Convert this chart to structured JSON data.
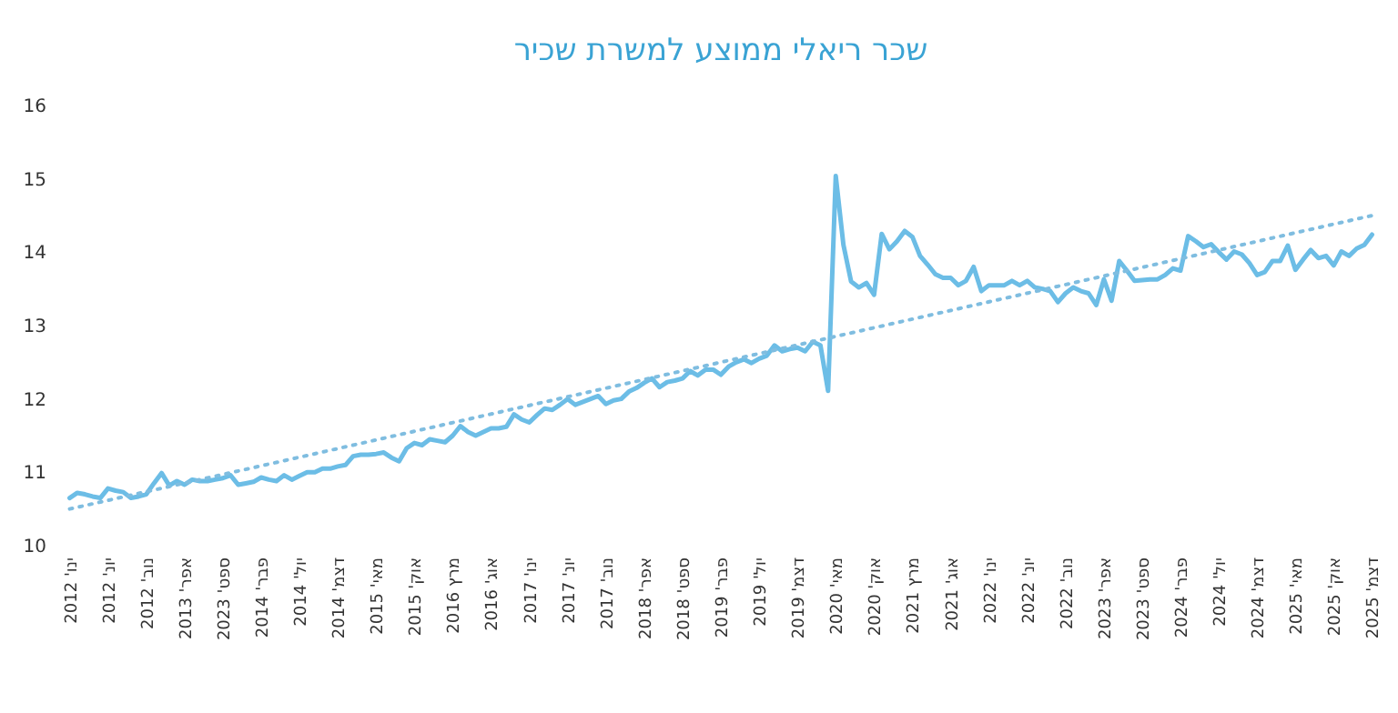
{
  "chart_data": {
    "type": "line",
    "title": "שכר ריאלי ממוצע למשרת שכיר",
    "categories": [
      "ינו' 2012",
      null,
      null,
      null,
      null,
      "יונ' 2012",
      null,
      null,
      null,
      null,
      "נוב' 2012",
      null,
      null,
      null,
      null,
      "אפר' 2013",
      null,
      null,
      null,
      null,
      "ספט' 2023",
      null,
      null,
      null,
      null,
      "פבר' 2014",
      null,
      null,
      null,
      null,
      "יול' 2014",
      null,
      null,
      null,
      null,
      "דצמ' 2014",
      null,
      null,
      null,
      null,
      "מאי' 2015",
      null,
      null,
      null,
      null,
      "אוק' 2015",
      null,
      null,
      null,
      null,
      "מרץ 2016",
      null,
      null,
      null,
      null,
      "אוג' 2016",
      null,
      null,
      null,
      null,
      "ינו' 2017",
      null,
      null,
      null,
      null,
      "יונ' 2017",
      null,
      null,
      null,
      null,
      "נוב' 2017",
      null,
      null,
      null,
      null,
      "אפר' 2018",
      null,
      null,
      null,
      null,
      "ספט' 2018",
      null,
      null,
      null,
      null,
      "פבר' 2019",
      null,
      null,
      null,
      null,
      "יול' 2019",
      null,
      null,
      null,
      null,
      "דצמ' 2019",
      null,
      null,
      null,
      null,
      "מאי' 2020",
      null,
      null,
      null,
      null,
      "אוק' 2020",
      null,
      null,
      null,
      null,
      "מרץ 2021",
      null,
      null,
      null,
      null,
      "אוג' 2021",
      null,
      null,
      null,
      null,
      "ינו' 2022",
      null,
      null,
      null,
      null,
      "יונ' 2022",
      null,
      null,
      null,
      null,
      "נוב' 2022",
      null,
      null,
      null,
      null,
      "אפר' 2023",
      null,
      null,
      null,
      null,
      "ספט' 2023",
      null,
      null,
      null,
      null,
      "פבר' 2024",
      null,
      null,
      null,
      null,
      "יול' 2024",
      null,
      null,
      null,
      null,
      "דצמ' 2024",
      null,
      null,
      null,
      null,
      "מאי' 2025",
      null,
      null,
      null,
      null,
      "אוק' 2025",
      null,
      null,
      null,
      null,
      "דצמ' 2025"
    ],
    "series": [
      {
        "color": "#6cbde6",
        "values": [
          10.65,
          10.72,
          10.7,
          10.67,
          10.65,
          10.78,
          10.75,
          10.73,
          10.65,
          10.67,
          10.7,
          10.85,
          10.99,
          10.82,
          10.88,
          10.83,
          10.9,
          10.88,
          10.88,
          10.9,
          10.92,
          10.96,
          10.83,
          10.85,
          10.87,
          10.93,
          10.9,
          10.88,
          10.96,
          10.9,
          10.95,
          11.0,
          11.0,
          11.05,
          11.05,
          11.08,
          11.1,
          11.22,
          11.24,
          11.24,
          11.25,
          11.27,
          11.2,
          11.15,
          11.33,
          11.4,
          11.37,
          11.45,
          11.43,
          11.41,
          11.5,
          11.63,
          11.55,
          11.5,
          11.55,
          11.6,
          11.6,
          11.62,
          11.79,
          11.72,
          11.68,
          11.78,
          11.87,
          11.85,
          11.92,
          12.0,
          11.92,
          11.96,
          12.0,
          12.04,
          11.93,
          11.98,
          12.0,
          12.1,
          12.15,
          12.22,
          12.28,
          12.16,
          12.23,
          12.25,
          12.28,
          12.38,
          12.32,
          12.4,
          12.4,
          12.33,
          12.44,
          12.5,
          12.54,
          12.49,
          12.55,
          12.59,
          12.73,
          12.65,
          12.68,
          12.7,
          12.65,
          12.78,
          12.73,
          12.11,
          15.04,
          14.1,
          13.6,
          13.52,
          13.58,
          13.42,
          14.25,
          14.04,
          14.15,
          14.29,
          14.21,
          13.95,
          13.83,
          13.7,
          13.65,
          13.65,
          13.55,
          13.61,
          13.8,
          13.47,
          13.55,
          13.55,
          13.55,
          13.61,
          13.55,
          13.61,
          13.52,
          13.5,
          13.47,
          13.32,
          13.44,
          13.52,
          13.47,
          13.44,
          13.28,
          13.63,
          13.34,
          13.88,
          13.75,
          13.61,
          13.62,
          13.63,
          13.63,
          13.69,
          13.78,
          13.75,
          14.22,
          14.15,
          14.07,
          14.11,
          14.0,
          13.9,
          14.01,
          13.97,
          13.85,
          13.69,
          13.73,
          13.88,
          13.88,
          14.09,
          13.76,
          13.9,
          14.03,
          13.92,
          13.95,
          13.82,
          14.01,
          13.95,
          14.05,
          14.1,
          14.24
        ]
      },
      {
        "type": "line",
        "color": "#7fbde0",
        "line_style": "dotted",
        "x": [
          "ינו' 2012",
          "דצמ' 2025"
        ],
        "values": [
          10.5,
          14.5
        ]
      }
    ],
    "ylim": [
      10,
      16
    ],
    "yticks": [
      10,
      11,
      12,
      13,
      14,
      15,
      16
    ]
  }
}
